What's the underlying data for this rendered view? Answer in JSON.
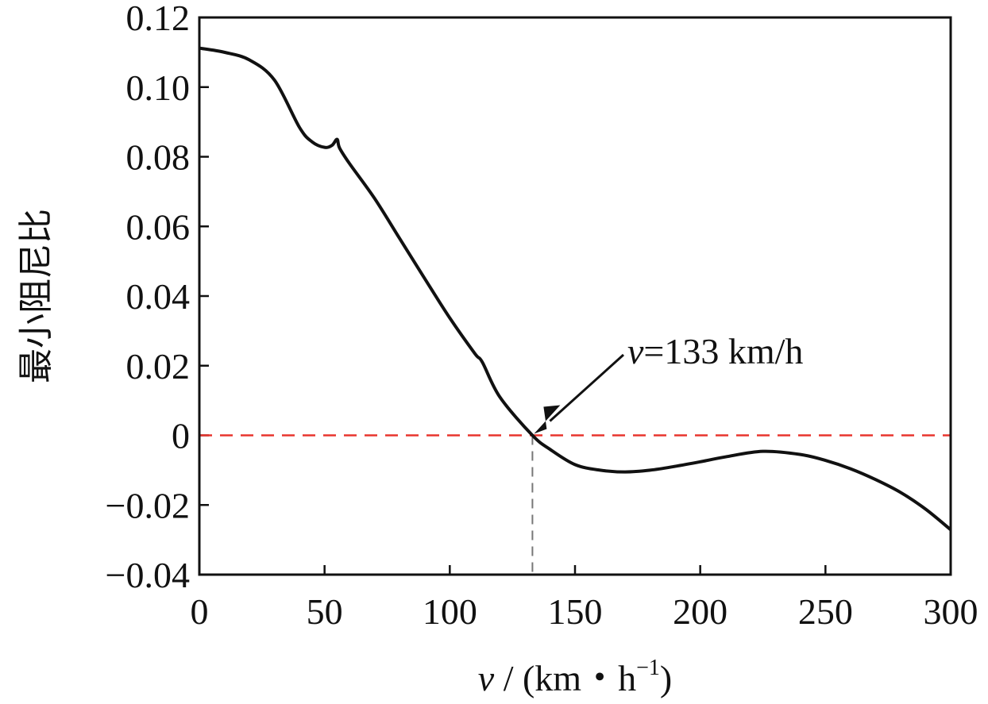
{
  "chart_data": {
    "type": "line",
    "title": "",
    "xlabel_var": "v",
    "xlabel_rest": " / (km・h",
    "xlabel_sup": "−1",
    "xlabel_close": ")",
    "ylabel": "最小阻尼比",
    "xlim": [
      0,
      300
    ],
    "ylim": [
      -0.04,
      0.12
    ],
    "x_ticks": [
      0,
      50,
      100,
      150,
      200,
      250,
      300
    ],
    "x_tick_labels": [
      "0",
      "50",
      "100",
      "150",
      "200",
      "250",
      "300"
    ],
    "y_ticks": [
      -0.04,
      -0.02,
      0,
      0.02,
      0.04,
      0.06,
      0.08,
      0.1,
      0.12
    ],
    "y_tick_labels": [
      "−0.04",
      "−0.02",
      "0",
      "0.02",
      "0.04",
      "0.06",
      "0.08",
      "0.10",
      "0.12"
    ],
    "grid": false,
    "series": [
      {
        "name": "最小阻尼比",
        "color": "#111111",
        "x": [
          0,
          10,
          20,
          30,
          40,
          45,
          50,
          53,
          55,
          56,
          60,
          70,
          80,
          90,
          100,
          110,
          113,
          120,
          133,
          140,
          150,
          160,
          170,
          180,
          190,
          200,
          210,
          225,
          240,
          250,
          260,
          270,
          280,
          290,
          300
        ],
        "y": [
          0.1112,
          0.11,
          0.1078,
          0.102,
          0.0884,
          0.0843,
          0.0827,
          0.0833,
          0.085,
          0.0825,
          0.078,
          0.068,
          0.0565,
          0.045,
          0.0337,
          0.0235,
          0.021,
          0.011,
          0.0,
          -0.004,
          -0.0084,
          -0.01,
          -0.0105,
          -0.01,
          -0.0089,
          -0.0076,
          -0.0062,
          -0.0046,
          -0.0055,
          -0.0072,
          -0.0096,
          -0.0127,
          -0.0164,
          -0.0212,
          -0.0271
        ]
      }
    ],
    "reference_lines": [
      {
        "type": "horizontal",
        "y": 0,
        "color": "#e8352e",
        "style": "dashed"
      },
      {
        "type": "vertical",
        "x": 133,
        "color": "#777777",
        "style": "dashed"
      }
    ],
    "annotation": {
      "var": "v",
      "text": "=133 km/h",
      "x": 133,
      "y": 0
    }
  }
}
